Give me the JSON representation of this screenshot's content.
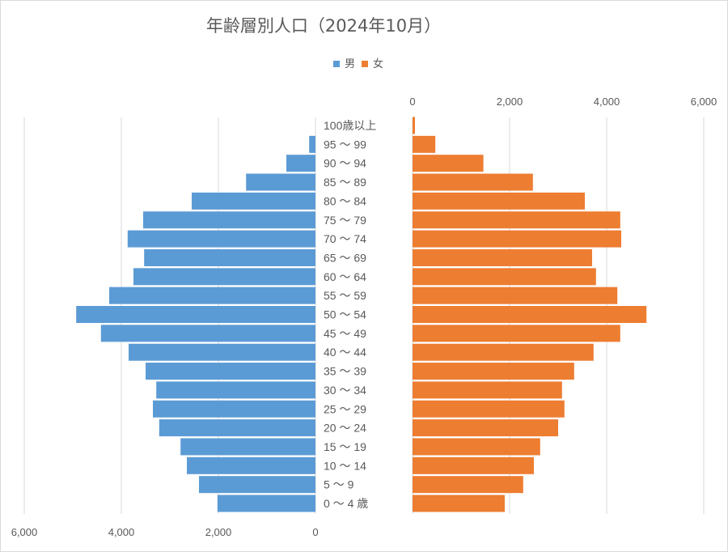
{
  "chart_data": {
    "type": "bar",
    "subtype": "population-pyramid",
    "title": "年齢層別人口（2024年10月）",
    "categories": [
      "100歳以上",
      "95 ～ 99",
      "90 ～ 94",
      "85 ～ 89",
      "80 ～ 84",
      "75 ～ 79",
      "70 ～ 74",
      "65 ～ 69",
      "60 ～ 64",
      "55 ～ 59",
      "50 ～ 54",
      "45 ～ 49",
      "40 ～ 44",
      "35 ～ 39",
      "30 ～ 34",
      "25 ～ 29",
      "20 ～ 24",
      "15 ～ 19",
      "10 ～ 14",
      "5 ～ 9",
      "0 ～ 4 歳"
    ],
    "series": [
      {
        "name": "男",
        "color": "#5b9bd5",
        "values": [
          0,
          130,
          600,
          1430,
          2550,
          3550,
          3870,
          3530,
          3750,
          4250,
          4930,
          4420,
          3850,
          3500,
          3280,
          3350,
          3220,
          2780,
          2650,
          2400,
          2020
        ]
      },
      {
        "name": "女",
        "color": "#ed7d31",
        "values": [
          50,
          470,
          1460,
          2480,
          3550,
          4280,
          4300,
          3700,
          3780,
          4220,
          4820,
          4280,
          3730,
          3330,
          3080,
          3130,
          3000,
          2630,
          2500,
          2280,
          1900
        ]
      }
    ],
    "xlim": [
      0,
      6000
    ],
    "left_axis_ticks": [
      "6,000",
      "4,000",
      "2,000",
      "0"
    ],
    "right_axis_ticks": [
      "0",
      "2,000",
      "4,000",
      "6,000"
    ],
    "grid": true,
    "legend": "top-center"
  }
}
